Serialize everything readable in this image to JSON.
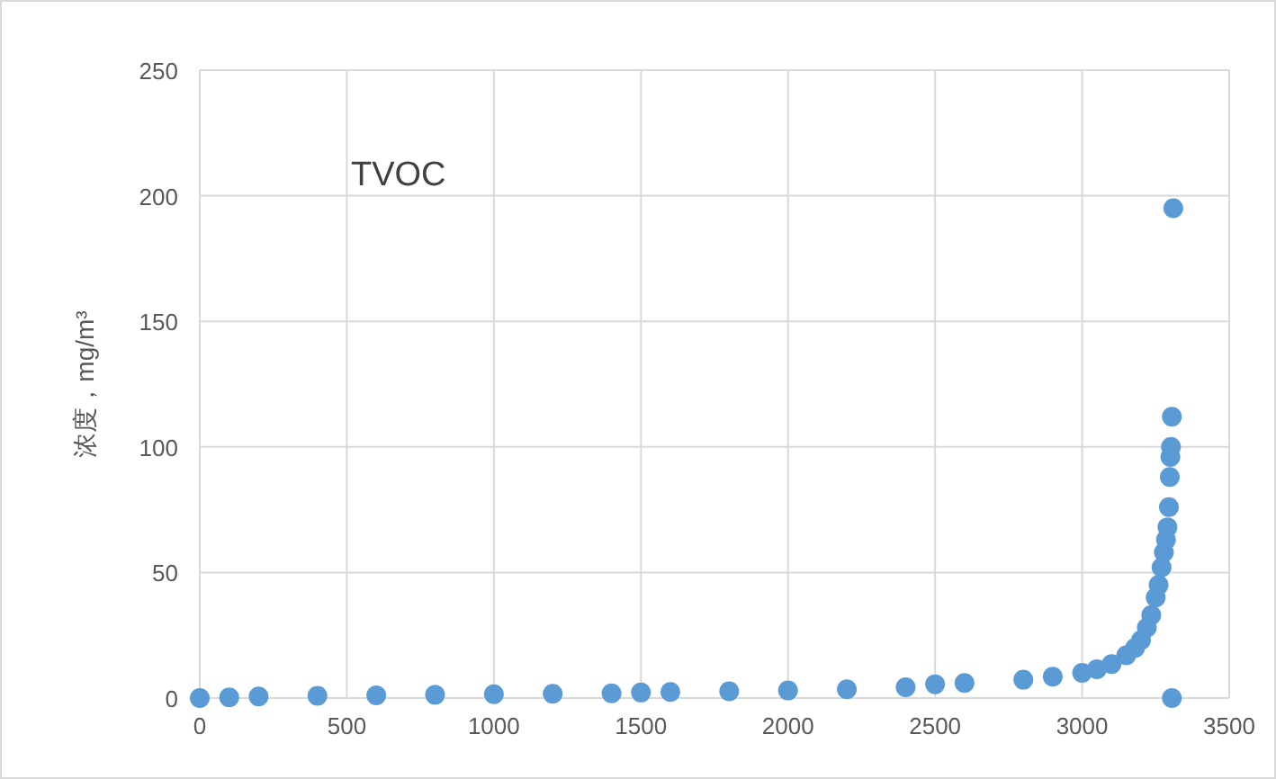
{
  "chart_data": {
    "type": "scatter",
    "ylabel": "浓度，mg/m³",
    "annotations": [
      "TVOC"
    ],
    "x": [
      0,
      100,
      200,
      400,
      600,
      800,
      1000,
      1200,
      1400,
      1500,
      1600,
      1800,
      2000,
      2200,
      2400,
      2500,
      2600,
      2800,
      2900,
      3000,
      3050,
      3100,
      3150,
      3180,
      3200,
      3220,
      3235,
      3250,
      3260,
      3270,
      3278,
      3285,
      3290,
      3295,
      3298,
      3300,
      3302,
      3305,
      3310,
      3305
    ],
    "series": [
      {
        "color": "#5b9bd5",
        "values": [
          0,
          0.3,
          0.6,
          0.9,
          1.1,
          1.3,
          1.5,
          1.7,
          1.9,
          2.2,
          2.4,
          2.7,
          3,
          3.5,
          4.3,
          5.5,
          6,
          7.3,
          8.5,
          10,
          11.5,
          13.5,
          17,
          20,
          23,
          28,
          33,
          40,
          45,
          52,
          58,
          63,
          68,
          76,
          88,
          96,
          100,
          112,
          195,
          0
        ]
      }
    ],
    "marker": "circle",
    "xlim": [
      0,
      3500
    ],
    "ylim": [
      0,
      250
    ],
    "xticks": [
      0,
      500,
      1000,
      1500,
      2000,
      2500,
      3000,
      3500
    ],
    "yticks": [
      0,
      50,
      100,
      150,
      200,
      250
    ],
    "grid": true
  }
}
